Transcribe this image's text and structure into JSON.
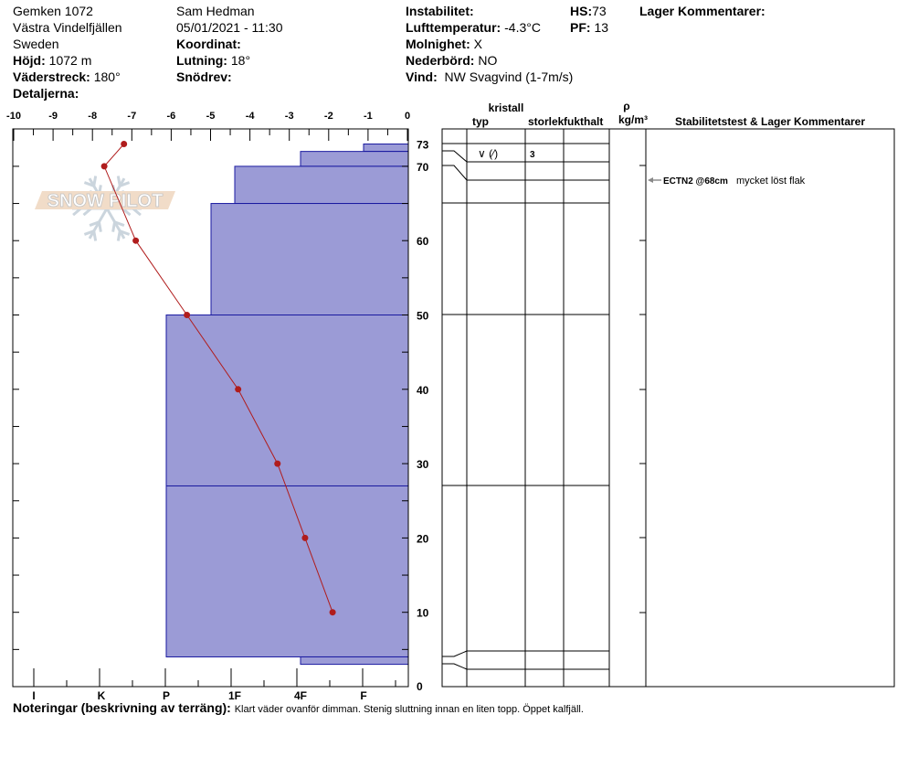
{
  "header": {
    "location": "Gemken 1072",
    "region": "Västra Vindelfjällen",
    "country": "Sweden",
    "elevation_label": "Höjd:",
    "elevation": "1072 m",
    "aspect_label": "Väderstreck:",
    "aspect": "180°",
    "details_label": "Detaljerna:",
    "observer": "Sam Hedman",
    "datetime": "05/01/2021 - 11:30",
    "coord_label": "Koordinat:",
    "slope_label": "Lutning:",
    "slope": "18°",
    "drift_label": "Snödrev:",
    "instability_label": "Instabilitet:",
    "air_temp_label": "Lufttemperatur:",
    "air_temp": "-4.3°C",
    "sky_label": "Molnighet:",
    "sky": "X",
    "precip_label": "Nederbörd:",
    "precip": "NO",
    "wind_label": "Vind:",
    "wind": "NW Svagvind (1-7m/s)",
    "hs_label": "HS:",
    "hs": "73",
    "pf_label": "PF:",
    "pf": "13",
    "layer_comments_label": "Lager Kommentarer:"
  },
  "profile": {
    "temp_ticks": [
      "-10",
      "-9",
      "-8",
      "-7",
      "-6",
      "-5",
      "-4",
      "-3",
      "-2",
      "-1",
      "0"
    ],
    "hardness_ticks": [
      "I",
      "K",
      "P",
      "1F",
      "4F",
      "F"
    ],
    "height_ticks": [
      "73",
      "70",
      "60",
      "50",
      "40",
      "30",
      "20",
      "10",
      "0"
    ],
    "layers": [
      {
        "top": 73,
        "bottom": 72,
        "hardness": "F"
      },
      {
        "top": 72,
        "bottom": 70,
        "hardness": "4F"
      },
      {
        "top": 70,
        "bottom": 65,
        "hardness": "1F"
      },
      {
        "top": 65,
        "bottom": 50,
        "hardness": "1F+"
      },
      {
        "top": 50,
        "bottom": 27,
        "hardness": "P"
      },
      {
        "top": 27,
        "bottom": 4,
        "hardness": "P"
      },
      {
        "top": 4,
        "bottom": 3,
        "hardness": "4F"
      }
    ],
    "temperatures": [
      {
        "h": 73,
        "t": -7.2
      },
      {
        "h": 70,
        "t": -7.7
      },
      {
        "h": 60,
        "t": -6.9
      },
      {
        "h": 50,
        "t": -5.6
      },
      {
        "h": 40,
        "t": -4.3
      },
      {
        "h": 30,
        "t": -3.3
      },
      {
        "h": 20,
        "t": -2.6
      },
      {
        "h": 10,
        "t": -1.9
      }
    ],
    "layer_color": "#9b9bd6",
    "temp_color": "#b01c1c",
    "logo_text": "SNOW PILOT"
  },
  "table": {
    "col_typ": "typ",
    "col_kristall": "kristall",
    "col_storlek": "storlek",
    "col_fukthalt": "fukthalt",
    "col_rho": "ρ",
    "col_density": "kg/m³",
    "col_comments": "Stabilitetstest & Lager Kommentarer",
    "grain_type": "∨ (⁄)",
    "grain_size": "3",
    "test_result": "ECTN2 @68cm",
    "test_comment": "mycket löst flak"
  },
  "notes": {
    "label": "Noteringar (beskrivning av terräng):",
    "text": "Klart väder ovanför dimman. Stenig sluttning innan en liten topp. Öppet kalfjäll."
  }
}
